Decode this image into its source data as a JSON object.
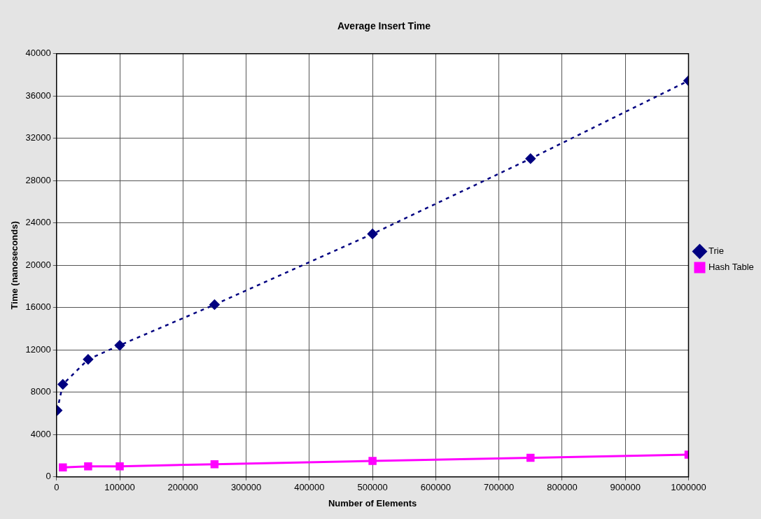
{
  "chart_data": {
    "type": "line",
    "title": "Average Insert Time",
    "xlabel": "Number of Elements",
    "ylabel": "Time (nanoseconds)",
    "x": [
      1000,
      10000,
      50000,
      100000,
      250000,
      500000,
      750000,
      1000000
    ],
    "series": [
      {
        "name": "Trie",
        "color": "#000080",
        "values": [
          6290,
          8750,
          11110,
          12440,
          16280,
          22970,
          30080,
          37450
        ],
        "marker": "diamond",
        "line_style": "dashed"
      },
      {
        "name": "Hash Table",
        "color": "#ff00ff",
        "values": [
          null,
          900,
          1000,
          1000,
          1200,
          1500,
          1800,
          2100
        ],
        "marker": "square",
        "line_style": "solid"
      }
    ],
    "xlim": [
      0,
      1000000
    ],
    "xticks": [
      0,
      100000,
      200000,
      300000,
      400000,
      500000,
      600000,
      700000,
      800000,
      900000,
      1000000
    ],
    "ylim": [
      0,
      40000
    ],
    "yticks": [
      0,
      4000,
      8000,
      12000,
      16000,
      20000,
      24000,
      28000,
      32000,
      36000,
      40000
    ],
    "grid": true,
    "legend": "right"
  }
}
